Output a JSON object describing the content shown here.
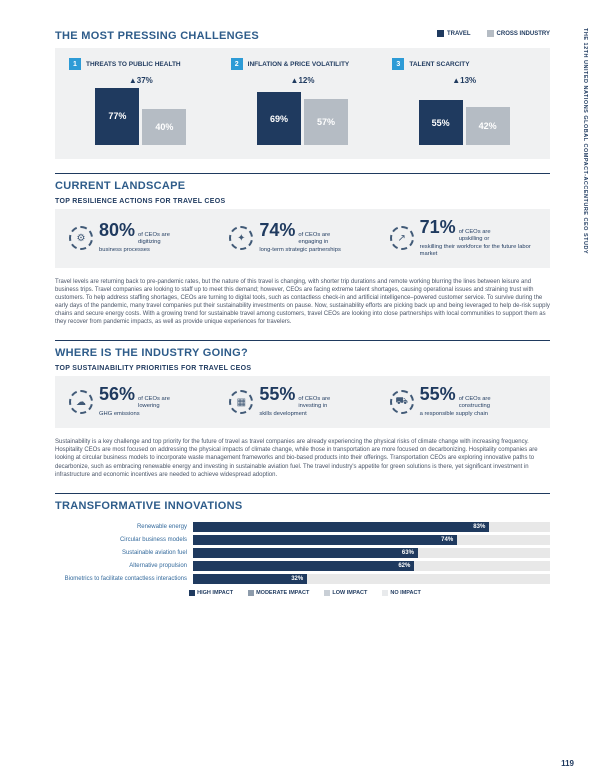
{
  "sideText": "THE 12TH UNITED NATIONS GLOBAL COMPACT-ACCENTURE CEO STUDY",
  "pageNumber": "119",
  "colors": {
    "navy": "#1f3a5f",
    "gray": "#b5bcc4",
    "ltgray": "#d9dde1",
    "vltgray": "#eceef0",
    "blueAccent": "#2d9bd6",
    "titleBlue": "#2e5c8a",
    "panel": "#f0f1f2"
  },
  "challenges": {
    "title": "THE MOST PRESSING CHALLENGES",
    "legend": [
      {
        "label": "TRAVEL",
        "swatch": "#1f3a5f"
      },
      {
        "label": "CROSS INDUSTRY",
        "swatch": "#b5bcc4"
      }
    ],
    "items": [
      {
        "n": "1",
        "label": "THREATS TO PUBLIC HEALTH",
        "delta": "▲37%",
        "a": 77,
        "b": 40
      },
      {
        "n": "2",
        "label": "INFLATION & PRICE VOLATILITY",
        "delta": "▲12%",
        "a": 69,
        "b": 57
      },
      {
        "n": "3",
        "label": "TALENT SCARCITY",
        "delta": "▲13%",
        "a": 55,
        "b": 42
      }
    ],
    "maxHeight": 56
  },
  "landscape": {
    "title": "CURRENT LANDSCAPE",
    "sub": "TOP RESILIENCE ACTIONS FOR TRAVEL CEOS",
    "stats": [
      {
        "icon": "⚙",
        "pct": "80%",
        "l1": "of CEOs are",
        "l2": "digitizing",
        "l3": "business processes"
      },
      {
        "icon": "✦",
        "pct": "74%",
        "l1": "of CEOs are",
        "l2": "engaging in",
        "l3": "long-term strategic partnerships"
      },
      {
        "icon": "↗",
        "pct": "71%",
        "l1": "of CEOs are",
        "l2": "upskilling or",
        "l3": "reskilling their workforce for the future labor market"
      }
    ],
    "body": "Travel levels are returning back to pre-pandemic rates, but the nature of this travel is changing, with shorter trip durations and remote working blurring the lines between leisure and business trips. Travel companies are looking to staff up to meet this demand; however, CEOs are facing extreme talent shortages, causing operational issues and straining trust with customers. To help address staffing shortages, CEOs are turning to digital tools, such as contactless check-in and artificial intelligence–powered customer service. To survive during the early days of the pandemic, many travel companies put their sustainability investments on pause. Now, sustainability efforts are picking back up and being leveraged to help de-risk supply chains and secure energy costs. With a growing trend for sustainable travel among customers, travel CEOs are looking into close partnerships with local communities to support them as they recover from pandemic impacts, as well as provide unique experiences for travelers."
  },
  "industry": {
    "title": "WHERE IS THE INDUSTRY GOING?",
    "sub": "TOP SUSTAINABILITY PRIORITIES FOR TRAVEL CEOS",
    "stats": [
      {
        "icon": "☁",
        "pct": "56%",
        "l1": "of CEOs are",
        "l2": "lowering",
        "l3": "GHG emissions"
      },
      {
        "icon": "▦",
        "pct": "55%",
        "l1": "of CEOs are",
        "l2": "investing in",
        "l3": "skills development"
      },
      {
        "icon": "⛟",
        "pct": "55%",
        "l1": "of CEOs are",
        "l2": "constructing",
        "l3": "a responsible supply chain"
      }
    ],
    "body": "Sustainability is a key challenge and top priority for the future of travel as travel companies are already experiencing the physical risks of climate change with increasing frequency. Hospitality CEOs are most focused on addressing the physical impacts of climate change, while those in transportation are more focused on decarbonizing. Hospitality companies are looking at circular business models to incorporate waste management frameworks and bio-based products into their offerings. Transportation CEOs are exploring innovative paths to decarbonize, such as embracing renewable energy and investing in sustainable aviation fuel. The travel industry's appetite for green solutions is there, yet significant investment in infrastructure and economic incentives are needed to achieve widespread adoption."
  },
  "innovations": {
    "title": "TRANSFORMATIVE INNOVATIONS",
    "rows": [
      {
        "label": "Renewable energy",
        "pct": 83
      },
      {
        "label": "Circular business models",
        "pct": 74
      },
      {
        "label": "Sustainable aviation fuel",
        "pct": 63
      },
      {
        "label": "Alternative propulsion",
        "pct": 62
      },
      {
        "label": "Biometrics to facilitate contactless interactions",
        "pct": 32
      }
    ],
    "legend": [
      {
        "label": "HIGH IMPACT",
        "c": "#1f3a5f"
      },
      {
        "label": "MODERATE IMPACT",
        "c": "#8d9bab"
      },
      {
        "label": "LOW IMPACT",
        "c": "#c9cfd6"
      },
      {
        "label": "NO IMPACT",
        "c": "#e8eaec"
      }
    ]
  }
}
